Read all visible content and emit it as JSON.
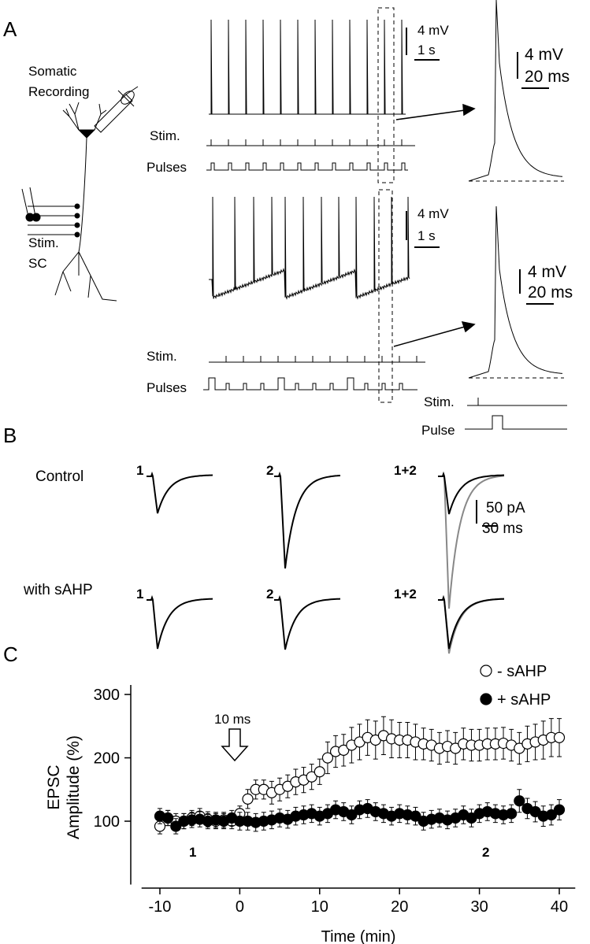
{
  "panel_a": {
    "label": "A",
    "recording": [
      "Somatic",
      "Recording"
    ],
    "stim_site": [
      "Stim.",
      "SC"
    ],
    "stim": "Stim.",
    "pulses": "Pulses",
    "pulse": "Pulse",
    "scale_mv": "4 mV",
    "scale_s": "1 s",
    "scale_ms": "20 ms"
  },
  "panel_b": {
    "label": "B",
    "conditions": [
      "Control",
      "with sAHP"
    ],
    "columns": [
      "1",
      "2",
      "1+2"
    ],
    "scale_pa": "50 pA",
    "scale_ms": "30 ms"
  },
  "chart_data": {
    "type": "scatter",
    "panel_label": "C",
    "xlabel": "Time (min)",
    "ylabel": [
      "EPSC",
      "Amplitude (%)"
    ],
    "annotations": [
      "10 ms",
      "1",
      "2"
    ],
    "xlim": [
      -12,
      42
    ],
    "xticks": [
      -10,
      0,
      10,
      20,
      30,
      40
    ],
    "ylim": [
      0,
      315
    ],
    "yticks": [
      100,
      200,
      300
    ],
    "legend": "top-right",
    "x": [
      -10,
      -9,
      -8,
      -7,
      -6,
      -5,
      -4,
      -3,
      -2,
      -1,
      0,
      1,
      2,
      3,
      4,
      5,
      6,
      7,
      8,
      9,
      10,
      11,
      12,
      13,
      14,
      15,
      16,
      17,
      18,
      19,
      20,
      21,
      22,
      23,
      24,
      25,
      26,
      27,
      28,
      29,
      30,
      31,
      32,
      33,
      34,
      35,
      36,
      37,
      38,
      39,
      40
    ],
    "series": [
      {
        "name": "- sAHP",
        "marker": "open",
        "color": "#000000",
        "values": [
          92,
          105,
          100,
          100,
          105,
          108,
          103,
          100,
          102,
          100,
          112,
          135,
          150,
          150,
          145,
          150,
          155,
          162,
          165,
          170,
          178,
          200,
          210,
          212,
          220,
          225,
          232,
          228,
          235,
          230,
          228,
          228,
          225,
          222,
          220,
          215,
          218,
          215,
          222,
          220,
          220,
          222,
          222,
          223,
          220,
          215,
          222,
          225,
          228,
          232,
          232
        ],
        "errors": [
          12,
          12,
          12,
          12,
          12,
          12,
          12,
          12,
          12,
          12,
          12,
          15,
          15,
          15,
          18,
          18,
          18,
          20,
          20,
          20,
          20,
          25,
          25,
          25,
          28,
          28,
          28,
          30,
          30,
          30,
          28,
          28,
          28,
          25,
          25,
          25,
          25,
          25,
          25,
          25,
          25,
          25,
          25,
          25,
          25,
          25,
          28,
          28,
          30,
          30,
          30
        ]
      },
      {
        "name": "+ sAHP",
        "marker": "filled",
        "color": "#000000",
        "values": [
          108,
          105,
          92,
          100,
          102,
          103,
          100,
          102,
          100,
          105,
          100,
          100,
          98,
          100,
          102,
          105,
          103,
          108,
          110,
          112,
          108,
          112,
          118,
          115,
          110,
          118,
          120,
          115,
          112,
          108,
          112,
          110,
          108,
          100,
          103,
          105,
          102,
          105,
          110,
          105,
          112,
          115,
          112,
          110,
          112,
          132,
          120,
          115,
          108,
          110,
          118
        ],
        "errors": [
          12,
          12,
          12,
          12,
          12,
          12,
          12,
          12,
          12,
          12,
          14,
          14,
          14,
          14,
          14,
          14,
          14,
          14,
          14,
          14,
          14,
          14,
          14,
          14,
          14,
          14,
          14,
          14,
          14,
          14,
          14,
          14,
          14,
          14,
          14,
          14,
          14,
          14,
          14,
          14,
          14,
          14,
          14,
          14,
          14,
          18,
          16,
          16,
          16,
          16,
          16
        ]
      }
    ]
  }
}
